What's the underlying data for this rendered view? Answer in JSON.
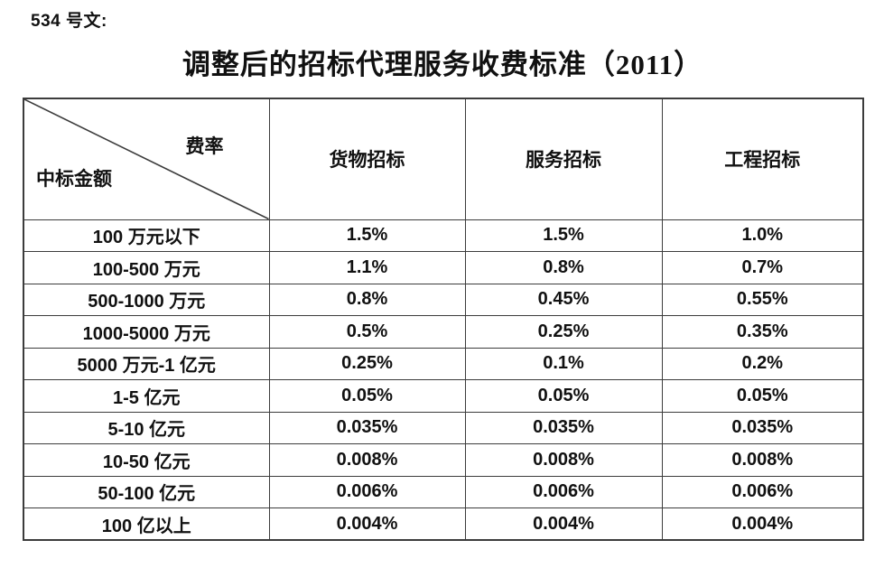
{
  "doc_label": "534 号文:",
  "title": "调整后的招标代理服务收费标准（2011）",
  "table": {
    "corner": {
      "top_right": "费率",
      "bottom_left": "中标金额"
    },
    "columns": [
      "货物招标",
      "服务招标",
      "工程招标"
    ],
    "rows": [
      {
        "label": "100 万元以下",
        "values": [
          "1.5%",
          "1.5%",
          "1.0%"
        ]
      },
      {
        "label": "100-500 万元",
        "values": [
          "1.1%",
          "0.8%",
          "0.7%"
        ]
      },
      {
        "label": "500-1000 万元",
        "values": [
          "0.8%",
          "0.45%",
          "0.55%"
        ]
      },
      {
        "label": "1000-5000 万元",
        "values": [
          "0.5%",
          "0.25%",
          "0.35%"
        ]
      },
      {
        "label": "5000 万元-1 亿元",
        "values": [
          "0.25%",
          "0.1%",
          "0.2%"
        ]
      },
      {
        "label": "1-5 亿元",
        "values": [
          "0.05%",
          "0.05%",
          "0.05%"
        ]
      },
      {
        "label": "5-10 亿元",
        "values": [
          "0.035%",
          "0.035%",
          "0.035%"
        ]
      },
      {
        "label": "10-50 亿元",
        "values": [
          "0.008%",
          "0.008%",
          "0.008%"
        ]
      },
      {
        "label": "50-100 亿元",
        "values": [
          "0.006%",
          "0.006%",
          "0.006%"
        ]
      },
      {
        "label": "100 亿以上",
        "values": [
          "0.004%",
          "0.004%",
          "0.004%"
        ]
      }
    ]
  },
  "colors": {
    "text": "#111111",
    "border": "#3c3c3c",
    "background": "#ffffff"
  }
}
